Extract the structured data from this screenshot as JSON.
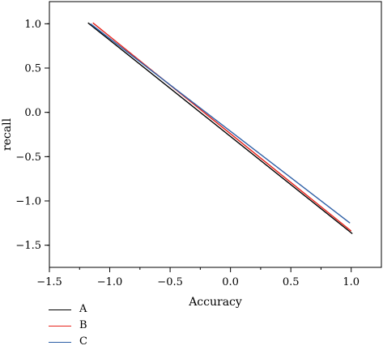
{
  "chart_data": {
    "type": "line",
    "title": "",
    "xlabel": "Accuracy",
    "ylabel": "recall",
    "xlim": [
      -1.5,
      1.25
    ],
    "ylim": [
      -1.75,
      1.25
    ],
    "x_ticks": [
      -1.5,
      -1.0,
      -0.5,
      0.0,
      0.5,
      1.0
    ],
    "x_tick_labels": [
      "−1.5",
      "−1.0",
      "−0.5",
      "0.0",
      "0.5",
      "1.0"
    ],
    "y_ticks": [
      1.0,
      0.5,
      0.0,
      -0.5,
      -1.0,
      -1.5
    ],
    "y_tick_labels": [
      "1.0",
      "0.5",
      "0.0",
      "−0.5",
      "−1.0",
      "−1.5"
    ],
    "grid": false,
    "legend_position": "bottom-left",
    "series": [
      {
        "name": "A",
        "color": "#000000",
        "x": [
          -1.18,
          1.01
        ],
        "y": [
          1.01,
          -1.37
        ]
      },
      {
        "name": "B",
        "color": "#e8241c",
        "x": [
          -1.14,
          1.0
        ],
        "y": [
          1.01,
          -1.34
        ]
      },
      {
        "name": "C",
        "color": "#2d5fa6",
        "x": [
          -1.16,
          0.99
        ],
        "y": [
          1.0,
          -1.25
        ]
      }
    ]
  }
}
